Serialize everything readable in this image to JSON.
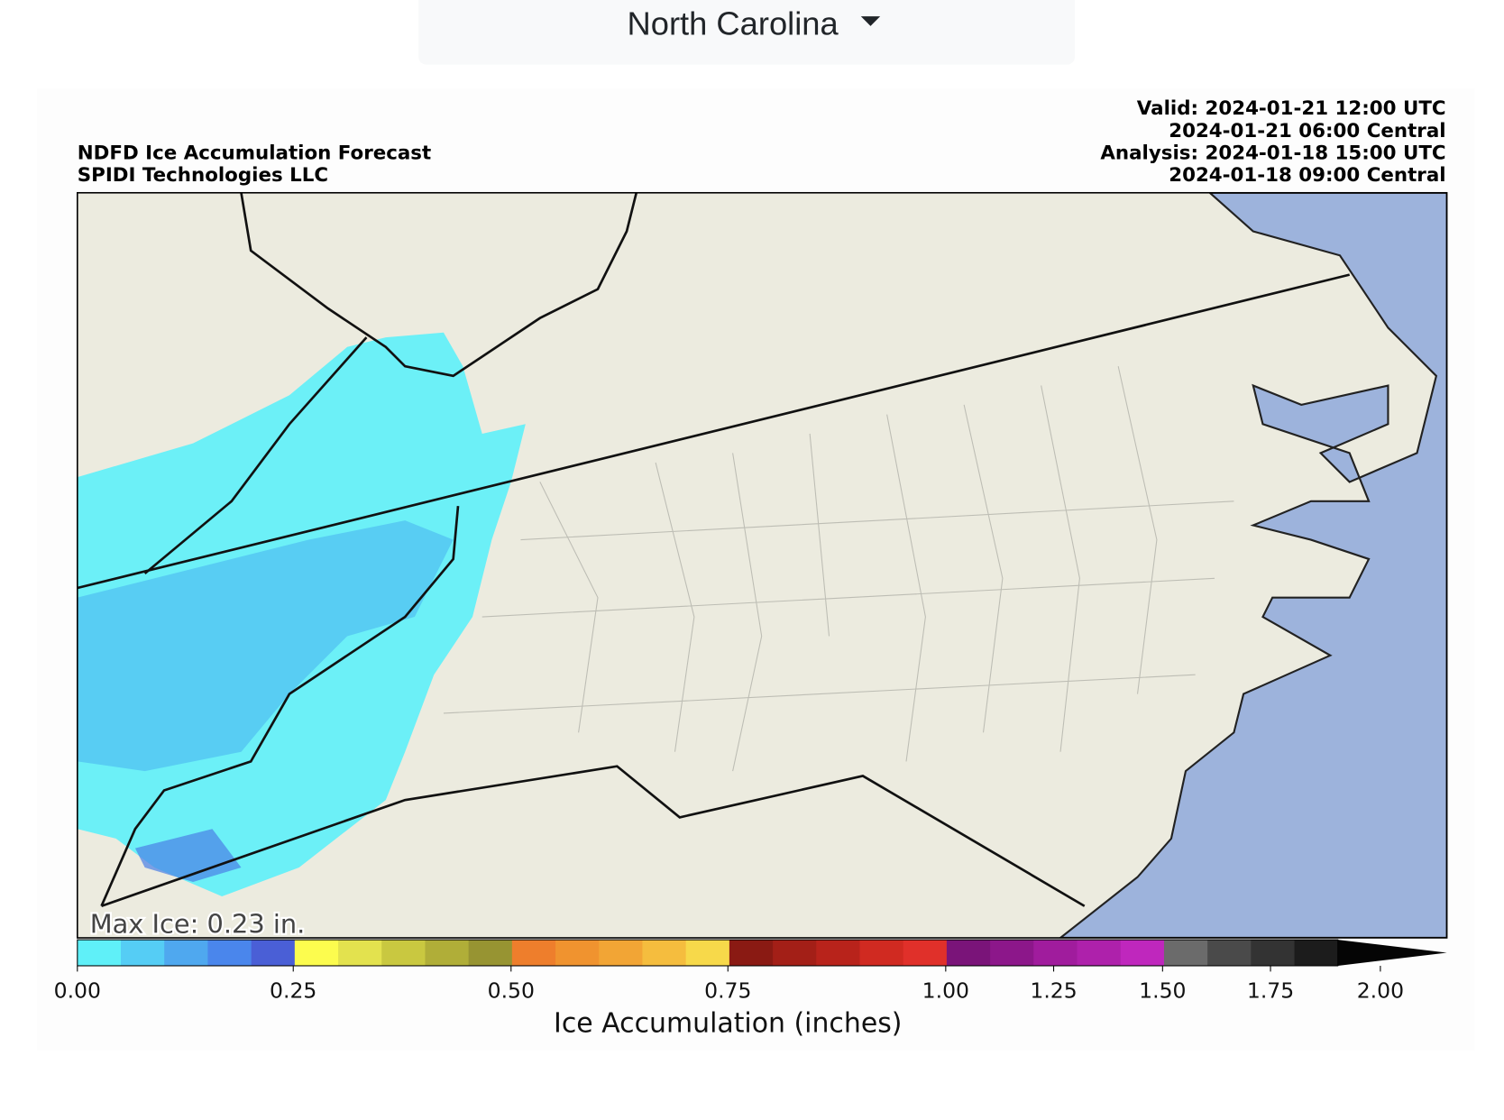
{
  "header": {
    "region": "North Carolina"
  },
  "map": {
    "title_lines": [
      "NDFD Ice Accumulation Forecast",
      "SPIDI Technologies LLC"
    ],
    "time_lines": [
      "Valid: 2024-01-21 12:00 UTC",
      "2024-01-21 06:00 Central",
      "Analysis: 2024-01-18 15:00 UTC",
      "2024-01-18 09:00 Central"
    ],
    "max_label": "Max Ice: 0.23 in.",
    "colorbar": {
      "ticks": [
        "0.00",
        "0.25",
        "0.50",
        "0.75",
        "1.00",
        "1.25",
        "1.50",
        "1.75",
        "2.00"
      ],
      "label": "Ice Accumulation (inches)"
    }
  }
}
